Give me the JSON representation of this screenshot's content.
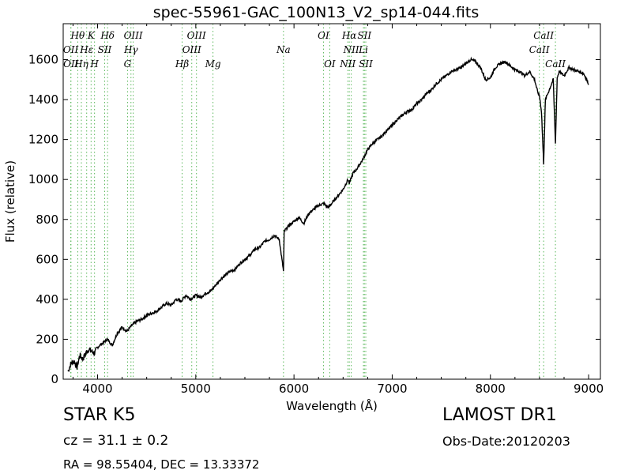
{
  "chart_data": {
    "type": "line",
    "title": "spec-55961-GAC_100N13_V2_sp14-044.fits",
    "xlabel": "Wavelength (Å)",
    "ylabel": "Flux (relative)",
    "xlim": [
      3650,
      9120
    ],
    "ylim": [
      0,
      1780
    ],
    "xticks": [
      4000,
      5000,
      6000,
      7000,
      8000,
      9000
    ],
    "yticks": [
      0,
      200,
      400,
      600,
      800,
      1000,
      1200,
      1400,
      1600
    ],
    "grid": false,
    "line_color": "#000000",
    "marker_color": "#5cb85c",
    "series": [
      {
        "x": [
          3700,
          3730,
          3760,
          3790,
          3820,
          3850,
          3880,
          3910,
          3940,
          3970,
          4000,
          4050,
          4100,
          4150,
          4200,
          4250,
          4300,
          4350,
          4400,
          4450,
          4500,
          4550,
          4600,
          4650,
          4700,
          4750,
          4800,
          4850,
          4900,
          4950,
          5000,
          5050,
          5100,
          5150,
          5200,
          5250,
          5300,
          5350,
          5400,
          5450,
          5500,
          5550,
          5600,
          5650,
          5700,
          5750,
          5800,
          5850,
          5893,
          5900,
          5950,
          6000,
          6050,
          6100,
          6150,
          6200,
          6250,
          6300,
          6350,
          6400,
          6450,
          6500,
          6550,
          6563,
          6600,
          6650,
          6700,
          6750,
          6800,
          6850,
          6900,
          6950,
          7000,
          7050,
          7100,
          7150,
          7200,
          7250,
          7300,
          7350,
          7400,
          7450,
          7500,
          7550,
          7600,
          7650,
          7700,
          7750,
          7800,
          7850,
          7900,
          7950,
          8000,
          8050,
          8100,
          8150,
          8200,
          8250,
          8300,
          8350,
          8400,
          8450,
          8480,
          8500,
          8520,
          8542,
          8560,
          8600,
          8640,
          8662,
          8680,
          8700,
          8750,
          8800,
          8850,
          8900,
          8950,
          9000
        ],
        "y": [
          40,
          80,
          90,
          60,
          120,
          100,
          130,
          150,
          140,
          130,
          160,
          180,
          200,
          170,
          230,
          260,
          240,
          270,
          290,
          300,
          320,
          330,
          340,
          360,
          380,
          370,
          400,
          390,
          420,
          400,
          420,
          410,
          430,
          440,
          470,
          500,
          520,
          540,
          550,
          580,
          600,
          620,
          650,
          660,
          690,
          700,
          720,
          700,
          540,
          740,
          770,
          790,
          810,
          780,
          830,
          850,
          870,
          880,
          860,
          890,
          920,
          950,
          1000,
          980,
          1030,
          1060,
          1100,
          1150,
          1180,
          1200,
          1220,
          1250,
          1270,
          1300,
          1320,
          1340,
          1350,
          1380,
          1400,
          1430,
          1450,
          1480,
          1500,
          1520,
          1540,
          1550,
          1560,
          1580,
          1600,
          1590,
          1560,
          1500,
          1510,
          1560,
          1580,
          1590,
          1570,
          1550,
          1540,
          1520,
          1540,
          1500,
          1440,
          1420,
          1340,
          1080,
          1400,
          1450,
          1500,
          1180,
          1510,
          1540,
          1520,
          1560,
          1550,
          1540,
          1530,
          1480
        ]
      }
    ],
    "line_markers": [
      {
        "label": "Hθ",
        "wl": 3798,
        "row": 1
      },
      {
        "label": "OII",
        "wl": 3727,
        "row": 2
      },
      {
        "label": "OII",
        "wl": 3729,
        "row": 3
      },
      {
        "label": "Hη",
        "wl": 3835,
        "row": 3
      },
      {
        "label": "K",
        "wl": 3934,
        "row": 1
      },
      {
        "label": "Hε",
        "wl": 3889,
        "row": 2
      },
      {
        "label": "SII",
        "wl": 4072,
        "row": 2
      },
      {
        "label": "H",
        "wl": 3969,
        "row": 3
      },
      {
        "label": "Hδ",
        "wl": 4102,
        "row": 1
      },
      {
        "label": "OIII",
        "wl": 4363,
        "row": 1
      },
      {
        "label": "Hγ",
        "wl": 4340,
        "row": 2
      },
      {
        "label": "G",
        "wl": 4305,
        "row": 3
      },
      {
        "label": "OIII",
        "wl": 5007,
        "row": 1
      },
      {
        "label": "OIII",
        "wl": 4959,
        "row": 2
      },
      {
        "label": "Hβ",
        "wl": 4861,
        "row": 3
      },
      {
        "label": "Mg",
        "wl": 5175,
        "row": 3
      },
      {
        "label": "Na",
        "wl": 5893,
        "row": 2
      },
      {
        "label": "OI",
        "wl": 6300,
        "row": 1
      },
      {
        "label": "OI",
        "wl": 6364,
        "row": 3
      },
      {
        "label": "Hα",
        "wl": 6563,
        "row": 1
      },
      {
        "label": "NII",
        "wl": 6583,
        "row": 2
      },
      {
        "label": "NII",
        "wl": 6548,
        "row": 3
      },
      {
        "label": "SII",
        "wl": 6717,
        "row": 1
      },
      {
        "label": "Li",
        "wl": 6707,
        "row": 2
      },
      {
        "label": "SII",
        "wl": 6731,
        "row": 3
      },
      {
        "label": "CaII",
        "wl": 8542,
        "row": 1
      },
      {
        "label": "CaII",
        "wl": 8498,
        "row": 2
      },
      {
        "label": "CaII",
        "wl": 8662,
        "row": 3
      }
    ]
  },
  "annotations": {
    "class_label": "STAR   K5",
    "survey": "LAMOST DR1",
    "cz": "cz = 31.1  ± 0.2",
    "obs_date": "Obs-Date:20120203",
    "radec": "RA = 98.55404, DEC = 13.33372"
  }
}
